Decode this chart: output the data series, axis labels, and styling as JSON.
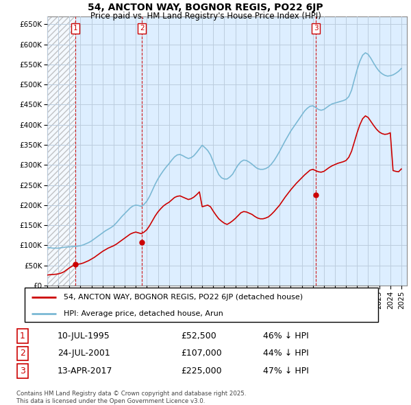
{
  "title": "54, ANCTON WAY, BOGNOR REGIS, PO22 6JP",
  "subtitle": "Price paid vs. HM Land Registry's House Price Index (HPI)",
  "legend_property": "54, ANCTON WAY, BOGNOR REGIS, PO22 6JP (detached house)",
  "legend_hpi": "HPI: Average price, detached house, Arun",
  "property_color": "#cc0000",
  "hpi_color": "#7ab8d4",
  "background_color": "#ddeeff",
  "ylim": [
    0,
    670000
  ],
  "yticks": [
    0,
    50000,
    100000,
    150000,
    200000,
    250000,
    300000,
    350000,
    400000,
    450000,
    500000,
    550000,
    600000,
    650000
  ],
  "ytick_labels": [
    "£0",
    "£50K",
    "£100K",
    "£150K",
    "£200K",
    "£250K",
    "£300K",
    "£350K",
    "£400K",
    "£450K",
    "£500K",
    "£550K",
    "£600K",
    "£650K"
  ],
  "xlim_start": 1993.0,
  "xlim_end": 2025.5,
  "xticks": [
    1993,
    1994,
    1995,
    1996,
    1997,
    1998,
    1999,
    2000,
    2001,
    2002,
    2003,
    2004,
    2005,
    2006,
    2007,
    2008,
    2009,
    2010,
    2011,
    2012,
    2013,
    2014,
    2015,
    2016,
    2017,
    2018,
    2019,
    2020,
    2021,
    2022,
    2023,
    2024,
    2025
  ],
  "purchases": [
    {
      "date": 1995.53,
      "price": 52500,
      "label": "1"
    },
    {
      "date": 2001.56,
      "price": 107000,
      "label": "2"
    },
    {
      "date": 2017.28,
      "price": 225000,
      "label": "3"
    }
  ],
  "table_rows": [
    {
      "num": "1",
      "date": "10-JUL-1995",
      "price": "£52,500",
      "note": "46% ↓ HPI"
    },
    {
      "num": "2",
      "date": "24-JUL-2001",
      "price": "£107,000",
      "note": "44% ↓ HPI"
    },
    {
      "num": "3",
      "date": "13-APR-2017",
      "price": "£225,000",
      "note": "47% ↓ HPI"
    }
  ],
  "footer": "Contains HM Land Registry data © Crown copyright and database right 2025.\nThis data is licensed under the Open Government Licence v3.0.",
  "hpi_data_x": [
    1993.0,
    1993.25,
    1993.5,
    1993.75,
    1994.0,
    1994.25,
    1994.5,
    1994.75,
    1995.0,
    1995.25,
    1995.5,
    1995.75,
    1996.0,
    1996.25,
    1996.5,
    1996.75,
    1997.0,
    1997.25,
    1997.5,
    1997.75,
    1998.0,
    1998.25,
    1998.5,
    1998.75,
    1999.0,
    1999.25,
    1999.5,
    1999.75,
    2000.0,
    2000.25,
    2000.5,
    2000.75,
    2001.0,
    2001.25,
    2001.5,
    2001.75,
    2002.0,
    2002.25,
    2002.5,
    2002.75,
    2003.0,
    2003.25,
    2003.5,
    2003.75,
    2004.0,
    2004.25,
    2004.5,
    2004.75,
    2005.0,
    2005.25,
    2005.5,
    2005.75,
    2006.0,
    2006.25,
    2006.5,
    2006.75,
    2007.0,
    2007.25,
    2007.5,
    2007.75,
    2008.0,
    2008.25,
    2008.5,
    2008.75,
    2009.0,
    2009.25,
    2009.5,
    2009.75,
    2010.0,
    2010.25,
    2010.5,
    2010.75,
    2011.0,
    2011.25,
    2011.5,
    2011.75,
    2012.0,
    2012.25,
    2012.5,
    2012.75,
    2013.0,
    2013.25,
    2013.5,
    2013.75,
    2014.0,
    2014.25,
    2014.5,
    2014.75,
    2015.0,
    2015.25,
    2015.5,
    2015.75,
    2016.0,
    2016.25,
    2016.5,
    2016.75,
    2017.0,
    2017.25,
    2017.5,
    2017.75,
    2018.0,
    2018.25,
    2018.5,
    2018.75,
    2019.0,
    2019.25,
    2019.5,
    2019.75,
    2020.0,
    2020.25,
    2020.5,
    2020.75,
    2021.0,
    2021.25,
    2021.5,
    2021.75,
    2022.0,
    2022.25,
    2022.5,
    2022.75,
    2023.0,
    2023.25,
    2023.5,
    2023.75,
    2024.0,
    2024.25,
    2024.5,
    2024.75,
    2025.0
  ],
  "hpi_data_y": [
    95000,
    94000,
    93000,
    93000,
    93000,
    94000,
    95000,
    96000,
    96000,
    97000,
    97000,
    98000,
    99000,
    101000,
    104000,
    107000,
    111000,
    116000,
    121000,
    126000,
    131000,
    136000,
    140000,
    144000,
    149000,
    156000,
    164000,
    172000,
    179000,
    186000,
    193000,
    198000,
    200000,
    199000,
    197000,
    202000,
    210000,
    222000,
    237000,
    252000,
    265000,
    276000,
    286000,
    295000,
    303000,
    312000,
    320000,
    325000,
    326000,
    323000,
    319000,
    316000,
    318000,
    323000,
    331000,
    340000,
    349000,
    343000,
    336000,
    325000,
    308000,
    291000,
    276000,
    268000,
    265000,
    265000,
    270000,
    277000,
    289000,
    300000,
    308000,
    312000,
    311000,
    307000,
    302000,
    296000,
    291000,
    289000,
    289000,
    291000,
    295000,
    302000,
    311000,
    322000,
    334000,
    347000,
    360000,
    372000,
    384000,
    394000,
    404000,
    414000,
    424000,
    434000,
    441000,
    446000,
    447000,
    443000,
    438000,
    436000,
    438000,
    443000,
    448000,
    452000,
    454000,
    456000,
    458000,
    460000,
    463000,
    470000,
    486000,
    512000,
    537000,
    558000,
    573000,
    579000,
    575000,
    565000,
    553000,
    542000,
    533000,
    527000,
    523000,
    521000,
    522000,
    524000,
    528000,
    533000,
    540000
  ],
  "prop_data_x": [
    1993.0,
    1993.25,
    1993.5,
    1993.75,
    1994.0,
    1994.25,
    1994.5,
    1994.75,
    1995.0,
    1995.25,
    1995.5,
    1995.75,
    1996.0,
    1996.25,
    1996.5,
    1996.75,
    1997.0,
    1997.25,
    1997.5,
    1997.75,
    1998.0,
    1998.25,
    1998.5,
    1998.75,
    1999.0,
    1999.25,
    1999.5,
    1999.75,
    2000.0,
    2000.25,
    2000.5,
    2000.75,
    2001.0,
    2001.25,
    2001.5,
    2001.75,
    2002.0,
    2002.25,
    2002.5,
    2002.75,
    2003.0,
    2003.25,
    2003.5,
    2003.75,
    2004.0,
    2004.25,
    2004.5,
    2004.75,
    2005.0,
    2005.25,
    2005.5,
    2005.75,
    2006.0,
    2006.25,
    2006.5,
    2006.75,
    2007.0,
    2007.25,
    2007.5,
    2007.75,
    2008.0,
    2008.25,
    2008.5,
    2008.75,
    2009.0,
    2009.25,
    2009.5,
    2009.75,
    2010.0,
    2010.25,
    2010.5,
    2010.75,
    2011.0,
    2011.25,
    2011.5,
    2011.75,
    2012.0,
    2012.25,
    2012.5,
    2012.75,
    2013.0,
    2013.25,
    2013.5,
    2013.75,
    2014.0,
    2014.25,
    2014.5,
    2014.75,
    2015.0,
    2015.25,
    2015.5,
    2015.75,
    2016.0,
    2016.25,
    2016.5,
    2016.75,
    2017.0,
    2017.25,
    2017.5,
    2017.75,
    2018.0,
    2018.25,
    2018.5,
    2018.75,
    2019.0,
    2019.25,
    2019.5,
    2019.75,
    2020.0,
    2020.25,
    2020.5,
    2020.75,
    2021.0,
    2021.25,
    2021.5,
    2021.75,
    2022.0,
    2022.25,
    2022.5,
    2022.75,
    2023.0,
    2023.25,
    2023.5,
    2023.75,
    2024.0,
    2024.25,
    2024.5,
    2024.75,
    2025.0
  ],
  "prop_data_y": [
    26000,
    27000,
    27500,
    28000,
    29000,
    31000,
    34000,
    39000,
    44000,
    48000,
    52000,
    53000,
    54000,
    56000,
    59000,
    62000,
    66000,
    70000,
    75000,
    80000,
    85000,
    89000,
    93000,
    96000,
    99000,
    103000,
    108000,
    113000,
    118000,
    123000,
    128000,
    131000,
    133000,
    131000,
    129000,
    133000,
    139000,
    149000,
    161000,
    173000,
    183000,
    191000,
    198000,
    203000,
    207000,
    213000,
    219000,
    222000,
    223000,
    220000,
    217000,
    214000,
    216000,
    220000,
    226000,
    233000,
    196000,
    198000,
    200000,
    196000,
    185000,
    175000,
    166000,
    160000,
    155000,
    152000,
    156000,
    161000,
    167000,
    174000,
    181000,
    184000,
    183000,
    180000,
    177000,
    172000,
    168000,
    166000,
    166000,
    168000,
    171000,
    177000,
    184000,
    192000,
    200000,
    210000,
    220000,
    229000,
    238000,
    246000,
    254000,
    261000,
    268000,
    275000,
    281000,
    287000,
    289000,
    286000,
    283000,
    282000,
    284000,
    289000,
    294000,
    298000,
    301000,
    304000,
    306000,
    308000,
    311000,
    319000,
    334000,
    357000,
    380000,
    400000,
    415000,
    422000,
    418000,
    408000,
    398000,
    389000,
    382000,
    378000,
    376000,
    377000,
    380000,
    286000,
    284000,
    283000,
    290000
  ]
}
